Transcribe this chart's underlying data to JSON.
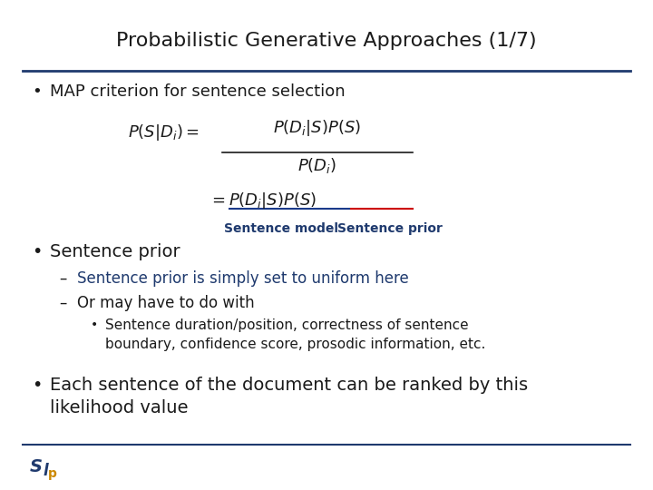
{
  "title": "Probabilistic Generative Approaches (1/7)",
  "title_fontsize": 16,
  "title_color": "#1a1a1a",
  "bg_color": "#ffffff",
  "line_color": "#1f3a6e",
  "bullet1": "MAP criterion for sentence selection",
  "bullet2": "Sentence prior",
  "sub1": "Sentence prior is simply set to uniform here",
  "sub2": "Or may have to do with",
  "sub3_line1": "Sentence duration/position, correctness of sentence",
  "sub3_line2": "boundary, confidence score, prosodic information, etc.",
  "bullet3_line1": "Each sentence of the document can be ranked by this",
  "bullet3_line2": "likelihood value",
  "bullet_color": "#1a1a1a",
  "sub1_color": "#1f3a6e",
  "sub2_color": "#1a1a1a",
  "sub3_color": "#1a1a1a",
  "label_sentence_model": "Sentence model",
  "label_sentence_prior": "Sentence prior",
  "label_color": "#1f3a6e",
  "logo_color1": "#1f3a6e",
  "logo_color2": "#cc8800",
  "underline_blue": "#1a3a8a",
  "underline_red": "#cc0000"
}
